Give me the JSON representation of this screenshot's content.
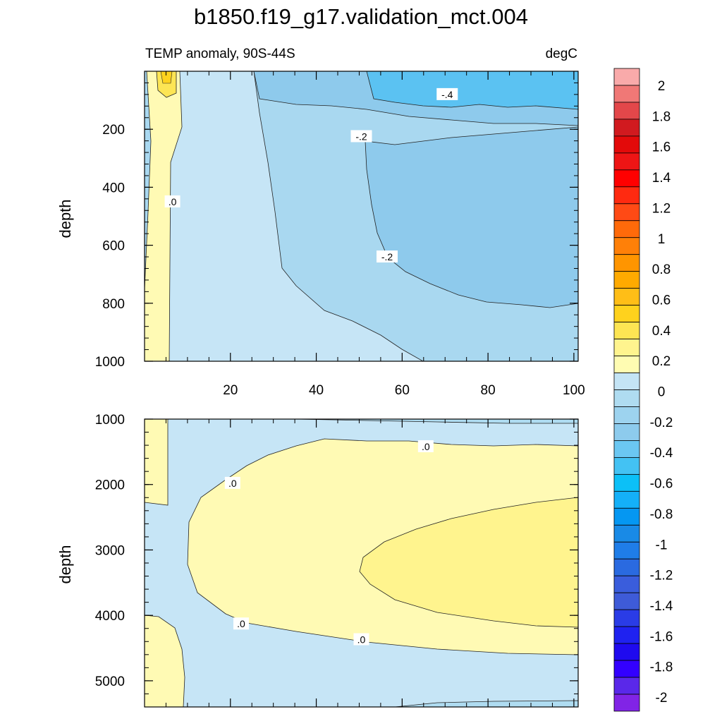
{
  "chart_data": {
    "type": "contour",
    "title": "b1850.f19_g17.validation_mct.004",
    "subtitle_left": "TEMP anomaly, 90S-44S",
    "subtitle_right": "degC",
    "upper_panel": {
      "ylabel": "depth",
      "ylim": [
        0,
        1000
      ],
      "yticks": [
        200,
        400,
        600,
        800,
        1000
      ],
      "ytick_labels": [
        "200",
        "400",
        "600",
        "800",
        "1000"
      ],
      "xlim": [
        0,
        101
      ],
      "xticks": [
        20,
        40,
        60,
        80,
        100
      ],
      "xtick_labels": [
        "20",
        "40",
        "60",
        "80",
        "100"
      ],
      "contour_labels": [
        {
          "text": "-.4",
          "x": 70.5,
          "y": 80
        },
        {
          "text": "-.2",
          "x": 50.5,
          "y": 225
        },
        {
          "text": "-.2",
          "x": 56.5,
          "y": 640
        },
        {
          "text": ".0",
          "x": 6.5,
          "y": 450
        }
      ]
    },
    "lower_panel": {
      "ylabel": "depth",
      "ylim": [
        1000,
        5400
      ],
      "yticks": [
        1000,
        2000,
        3000,
        4000,
        5000
      ],
      "ytick_labels": [
        "1000",
        "2000",
        "3000",
        "4000",
        "5000"
      ],
      "xlim": [
        0,
        101
      ],
      "contour_labels": [
        {
          "text": ".0",
          "x": 65.5,
          "y": 1420
        },
        {
          "text": ".0",
          "x": 20.5,
          "y": 1980
        },
        {
          "text": ".0",
          "x": 22.5,
          "y": 4130
        },
        {
          "text": ".0",
          "x": 50.5,
          "y": 4370
        }
      ]
    },
    "colorbar": {
      "levels": [
        2,
        1.8,
        1.6,
        1.4,
        1.2,
        1,
        0.8,
        0.6,
        0.4,
        0.2,
        0,
        -0.2,
        -0.4,
        -0.6,
        -0.8,
        -1,
        -1.2,
        -1.4,
        -1.6,
        -1.8,
        -2
      ],
      "tick_labels": [
        "2",
        "1.8",
        "1.6",
        "1.4",
        "1.2",
        "1",
        "0.8",
        "0.6",
        "0.4",
        "0.2",
        "0",
        "-0.2",
        "-0.4",
        "-0.6",
        "-0.8",
        "-1",
        "-1.2",
        "-1.4",
        "-1.6",
        "-1.8",
        "-2"
      ],
      "colors": [
        "#f9aaaa",
        "#f07876",
        "#e3474a",
        "#d11a1f",
        "#e30a0a",
        "#ee1515",
        "#ff0000",
        "#ff2a10",
        "#ff4a15",
        "#ff6a0a",
        "#ff8008",
        "#ff9500",
        "#ffaa00",
        "#ffbe17",
        "#ffd21d",
        "#fde553",
        "#fff48e",
        "#fffcb2",
        "#c4e4f5",
        "#afdcf1",
        "#9dd3ef",
        "#8dcbed",
        "#6bc7f2",
        "#43c2f3",
        "#0cc0f7",
        "#14b0f8",
        "#0597f2",
        "#198ae6",
        "#1f7de8",
        "#2a6ae0",
        "#3a5ddc",
        "#3e5bd8",
        "#2a3ce6",
        "#1f22f0",
        "#1f0aef",
        "#3300ff",
        "#5a28e9",
        "#8124e6"
      ]
    }
  }
}
